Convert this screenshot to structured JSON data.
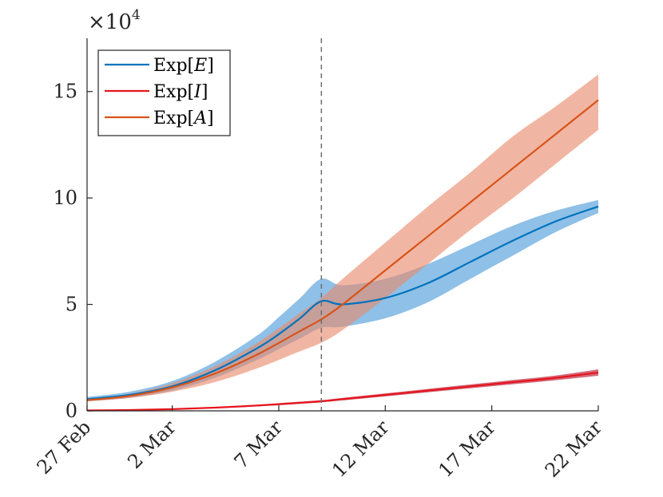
{
  "chart_data": {
    "type": "line",
    "title": "",
    "xlabel": "",
    "ylabel": "",
    "multiplier_label": "×10",
    "multiplier_exponent": "4",
    "x_day_range": [
      0,
      24
    ],
    "ylim": [
      0,
      17.5
    ],
    "y_ticks": [
      0,
      5,
      10,
      15
    ],
    "y_tick_labels": [
      "0",
      "5",
      "10",
      "15"
    ],
    "x_ticks": [
      0,
      4,
      9,
      14,
      19,
      24
    ],
    "x_tick_labels": [
      "27 Feb",
      "2 Mar",
      "7 Mar",
      "12 Mar",
      "17 Mar",
      "22 Mar"
    ],
    "vertical_line_day": 11,
    "legend_position": "top-left",
    "series": [
      {
        "name": "E",
        "legend_prefix": "Exp[",
        "legend_var": "E",
        "legend_suffix": "]",
        "color": "#0072bd",
        "band_color": "#4a9ad8",
        "days": [
          0,
          2,
          4,
          6,
          8,
          9,
          10,
          11,
          12,
          14,
          16,
          18,
          20,
          22,
          24
        ],
        "mean": [
          0.55,
          0.75,
          1.15,
          1.9,
          2.95,
          3.6,
          4.35,
          5.15,
          5.0,
          5.3,
          6.0,
          7.0,
          8.0,
          8.9,
          9.6
        ],
        "lower": [
          0.45,
          0.62,
          0.95,
          1.55,
          2.4,
          2.9,
          3.4,
          3.9,
          3.95,
          4.35,
          5.1,
          6.2,
          7.3,
          8.4,
          9.3
        ],
        "upper": [
          0.65,
          0.9,
          1.4,
          2.3,
          3.55,
          4.4,
          5.3,
          6.2,
          5.9,
          6.2,
          6.9,
          7.8,
          8.7,
          9.4,
          9.9
        ]
      },
      {
        "name": "I",
        "legend_prefix": "Exp[",
        "legend_var": "I",
        "legend_suffix": "]",
        "color": "#e8141d",
        "band_color": "#c0394e",
        "days": [
          0,
          2,
          4,
          6,
          8,
          10,
          11,
          12,
          14,
          16,
          18,
          20,
          22,
          24
        ],
        "mean": [
          0.02,
          0.04,
          0.08,
          0.15,
          0.25,
          0.38,
          0.45,
          0.55,
          0.75,
          0.95,
          1.15,
          1.35,
          1.55,
          1.8
        ],
        "lower": [
          0.01,
          0.03,
          0.06,
          0.12,
          0.21,
          0.33,
          0.4,
          0.49,
          0.68,
          0.87,
          1.06,
          1.25,
          1.44,
          1.65
        ],
        "upper": [
          0.03,
          0.05,
          0.1,
          0.18,
          0.29,
          0.43,
          0.5,
          0.61,
          0.82,
          1.03,
          1.24,
          1.45,
          1.66,
          1.95
        ]
      },
      {
        "name": "A",
        "legend_prefix": "Exp[",
        "legend_var": "A",
        "legend_suffix": "]",
        "color": "#d95319",
        "band_color": "#e8896b",
        "days": [
          0,
          2,
          4,
          6,
          8,
          10,
          11,
          12,
          14,
          16,
          18,
          20,
          22,
          24
        ],
        "mean": [
          0.5,
          0.7,
          1.1,
          1.75,
          2.65,
          3.75,
          4.3,
          5.0,
          6.6,
          8.2,
          9.8,
          11.4,
          13.0,
          14.6
        ],
        "lower": [
          0.45,
          0.6,
          0.9,
          1.35,
          2.0,
          2.8,
          3.2,
          3.8,
          5.3,
          6.9,
          8.5,
          10.0,
          11.6,
          13.2
        ],
        "upper": [
          0.55,
          0.8,
          1.3,
          2.1,
          3.2,
          4.6,
          5.3,
          6.2,
          7.9,
          9.6,
          11.2,
          12.9,
          14.3,
          15.8
        ]
      }
    ]
  }
}
